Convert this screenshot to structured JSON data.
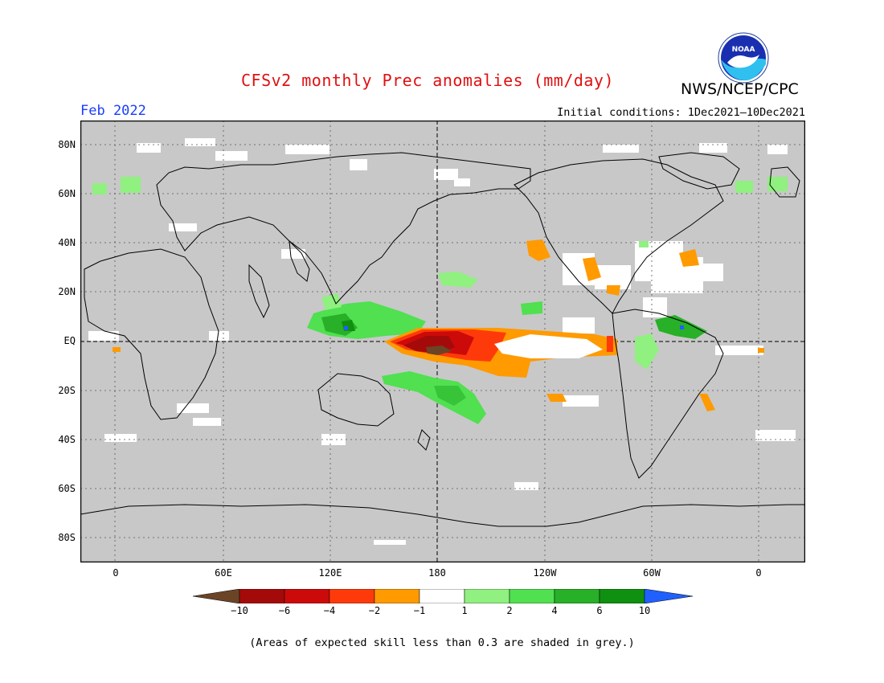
{
  "header": {
    "title": "CFSv2 monthly Prec anomalies (mm/day)",
    "org": "NWS/NCEP/CPC",
    "month": "Feb 2022",
    "initial_conditions": "Initial conditions: 1Dec2021—10Dec2021",
    "logo_text": "NOAA"
  },
  "axes": {
    "lat_labels": [
      "80N",
      "60N",
      "40N",
      "20N",
      "EQ",
      "20S",
      "40S",
      "60S",
      "80S"
    ],
    "lon_labels": [
      "0",
      "60E",
      "120E",
      "180",
      "120W",
      "60W",
      "0"
    ]
  },
  "legend": {
    "labels": [
      "−10",
      "−6",
      "−4",
      "−2",
      "−1",
      "1",
      "2",
      "4",
      "6",
      "10"
    ],
    "colors": [
      "#6b4426",
      "#a50a0a",
      "#cc0a0a",
      "#ff3a0a",
      "#ff9a00",
      "#ffffff",
      "#90f080",
      "#50e050",
      "#28b028",
      "#109010",
      "#2060ff"
    ]
  },
  "colors": {
    "skill_grey": "#c8c8c8",
    "title_red": "#e01010",
    "month_blue": "#1a3cff"
  },
  "footnote": "(Areas of expected skill less than 0.3 are shaded in grey.)"
}
